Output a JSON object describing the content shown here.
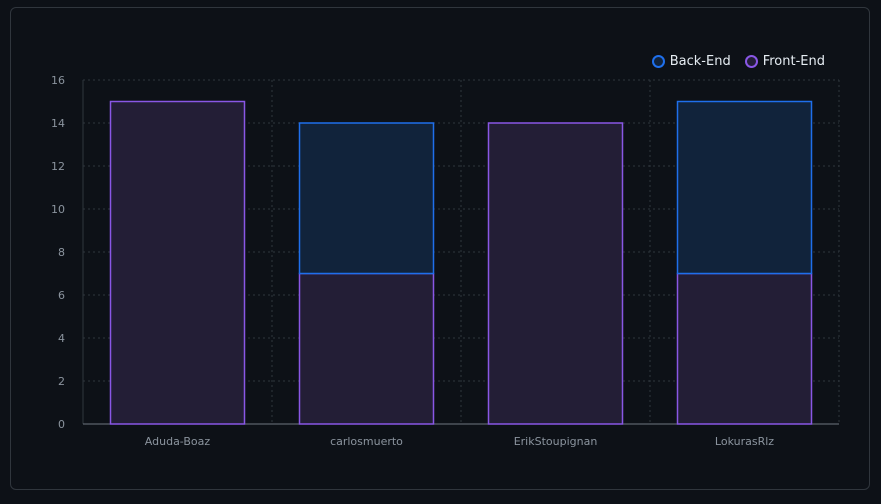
{
  "chart_data": {
    "type": "bar",
    "stacked": true,
    "categories": [
      "Aduda-Boaz",
      "carlosmuerto",
      "ErikStoupignan",
      "LokurasRlz"
    ],
    "series": [
      {
        "name": "Front-End",
        "values": [
          15,
          7,
          14,
          7
        ],
        "color": "#8957e5",
        "fill": "#231e36"
      },
      {
        "name": "Back-End",
        "values": [
          0,
          7,
          0,
          8
        ],
        "color": "#1f6feb",
        "fill": "#11233b"
      }
    ],
    "ylim": [
      0,
      16
    ],
    "yticks": [
      "0",
      "2",
      "4",
      "6",
      "8",
      "10",
      "12",
      "14",
      "16"
    ],
    "grid": true,
    "legend_position": "top-right"
  },
  "legend": {
    "items": [
      {
        "label": "Back-End",
        "color": "#1f6feb"
      },
      {
        "label": "Front-End",
        "color": "#8957e5"
      }
    ]
  }
}
